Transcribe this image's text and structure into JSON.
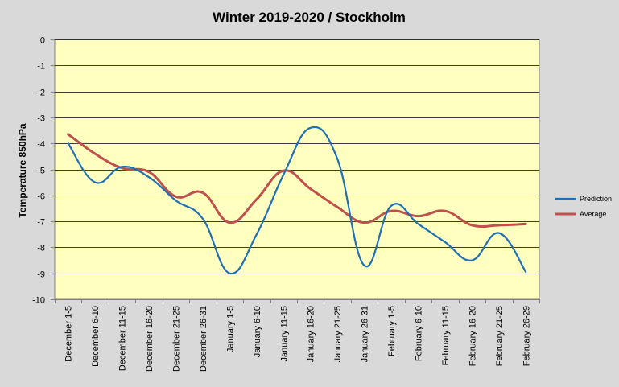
{
  "chart_data": {
    "type": "line",
    "title": "Winter 2019-2020 / Stockholm",
    "xlabel": "",
    "ylabel": "Temperature 850hPa",
    "ylim": [
      -10,
      0
    ],
    "yticks": [
      "0",
      "-1",
      "-2",
      "-3",
      "-4",
      "-5",
      "-6",
      "-7",
      "-8",
      "-9",
      "-10"
    ],
    "grid": true,
    "legend_position": "right",
    "categories": [
      "December 1-5",
      "December 6-10",
      "December 11-15",
      "December 16-20",
      "December 21-25",
      "December 26-31",
      "January 1-5",
      "January 6-10",
      "January 11-15",
      "January 16-20",
      "January 21-25",
      "January 26-31",
      "February 1-5",
      "February 6-10",
      "February 11-15",
      "February 16-20",
      "February 21-25",
      "February 26-29"
    ],
    "series": [
      {
        "name": "Prediction",
        "color": "#1f6fb5",
        "values": [
          -4.0,
          -5.5,
          -4.9,
          -5.3,
          -6.2,
          -6.9,
          -9.0,
          -7.5,
          -5.2,
          -3.4,
          -4.6,
          -8.7,
          -6.4,
          -7.1,
          -7.8,
          -8.5,
          -7.45,
          -8.95
        ]
      },
      {
        "name": "Average",
        "color": "#c0504d",
        "values": [
          -3.65,
          -4.4,
          -4.95,
          -5.1,
          -6.05,
          -5.9,
          -7.05,
          -6.15,
          -5.05,
          -5.75,
          -6.45,
          -7.05,
          -6.6,
          -6.8,
          -6.6,
          -7.15,
          -7.15,
          -7.1
        ]
      }
    ],
    "colors": {
      "plot_background": "#ffffc0",
      "chart_background": "#d9d9d9",
      "gridline": "#000000"
    }
  }
}
